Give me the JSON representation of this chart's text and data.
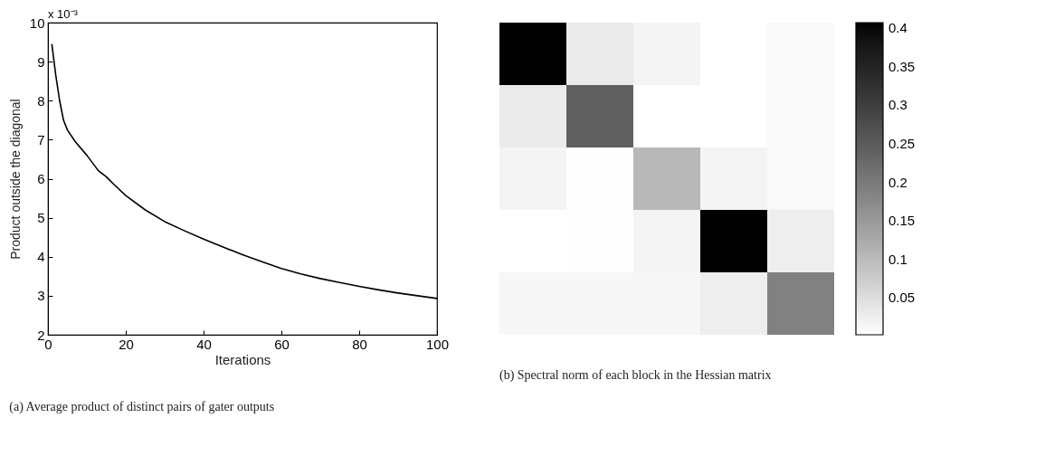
{
  "chart_data": [
    {
      "type": "line",
      "xlabel": "Iterations",
      "ylabel": "Product outside the diagonal",
      "annotations": [
        "x 10⁻³",
        "(a) Average product of distinct pairs of gater outputs"
      ],
      "x": [
        1,
        2,
        3,
        4,
        5,
        7,
        10,
        13,
        15,
        17,
        20,
        25,
        30,
        35,
        40,
        45,
        50,
        55,
        60,
        65,
        70,
        75,
        80,
        85,
        90,
        95,
        100
      ],
      "values": [
        9.45,
        8.66,
        8.0,
        7.5,
        7.25,
        6.95,
        6.6,
        6.2,
        6.05,
        5.85,
        5.57,
        5.2,
        4.9,
        4.67,
        4.45,
        4.25,
        4.05,
        3.87,
        3.7,
        3.56,
        3.44,
        3.34,
        3.24,
        3.15,
        3.07,
        3.0,
        2.93
      ],
      "color": "#000000",
      "xlim": [
        0,
        100
      ],
      "ylim": [
        2,
        10
      ],
      "xticks": [
        0,
        20,
        40,
        60,
        80,
        100
      ],
      "yticks": [
        2,
        3,
        4,
        5,
        6,
        7,
        8,
        9,
        10
      ],
      "grid": false
    },
    {
      "type": "heatmap",
      "annotations": [
        "(b) Spectral norm of each block in the Hessian matrix"
      ],
      "categories": [
        null,
        null,
        null,
        null,
        null
      ],
      "y_categories": [
        null,
        null,
        null,
        null,
        null
      ],
      "cells": [
        [
          0.407,
          0.031,
          0.018,
          0.002,
          0.01
        ],
        [
          0.032,
          0.242,
          0.002,
          0.002,
          0.01
        ],
        [
          0.018,
          0.004,
          0.105,
          0.018,
          0.01
        ],
        [
          0.002,
          0.003,
          0.018,
          0.407,
          0.026
        ],
        [
          0.013,
          0.013,
          0.013,
          0.026,
          0.188
        ]
      ],
      "clim": [
        0.002,
        0.4075
      ],
      "cticks": [
        0.05,
        0.1,
        0.15,
        0.2,
        0.25,
        0.3,
        0.35,
        0.4
      ]
    }
  ]
}
